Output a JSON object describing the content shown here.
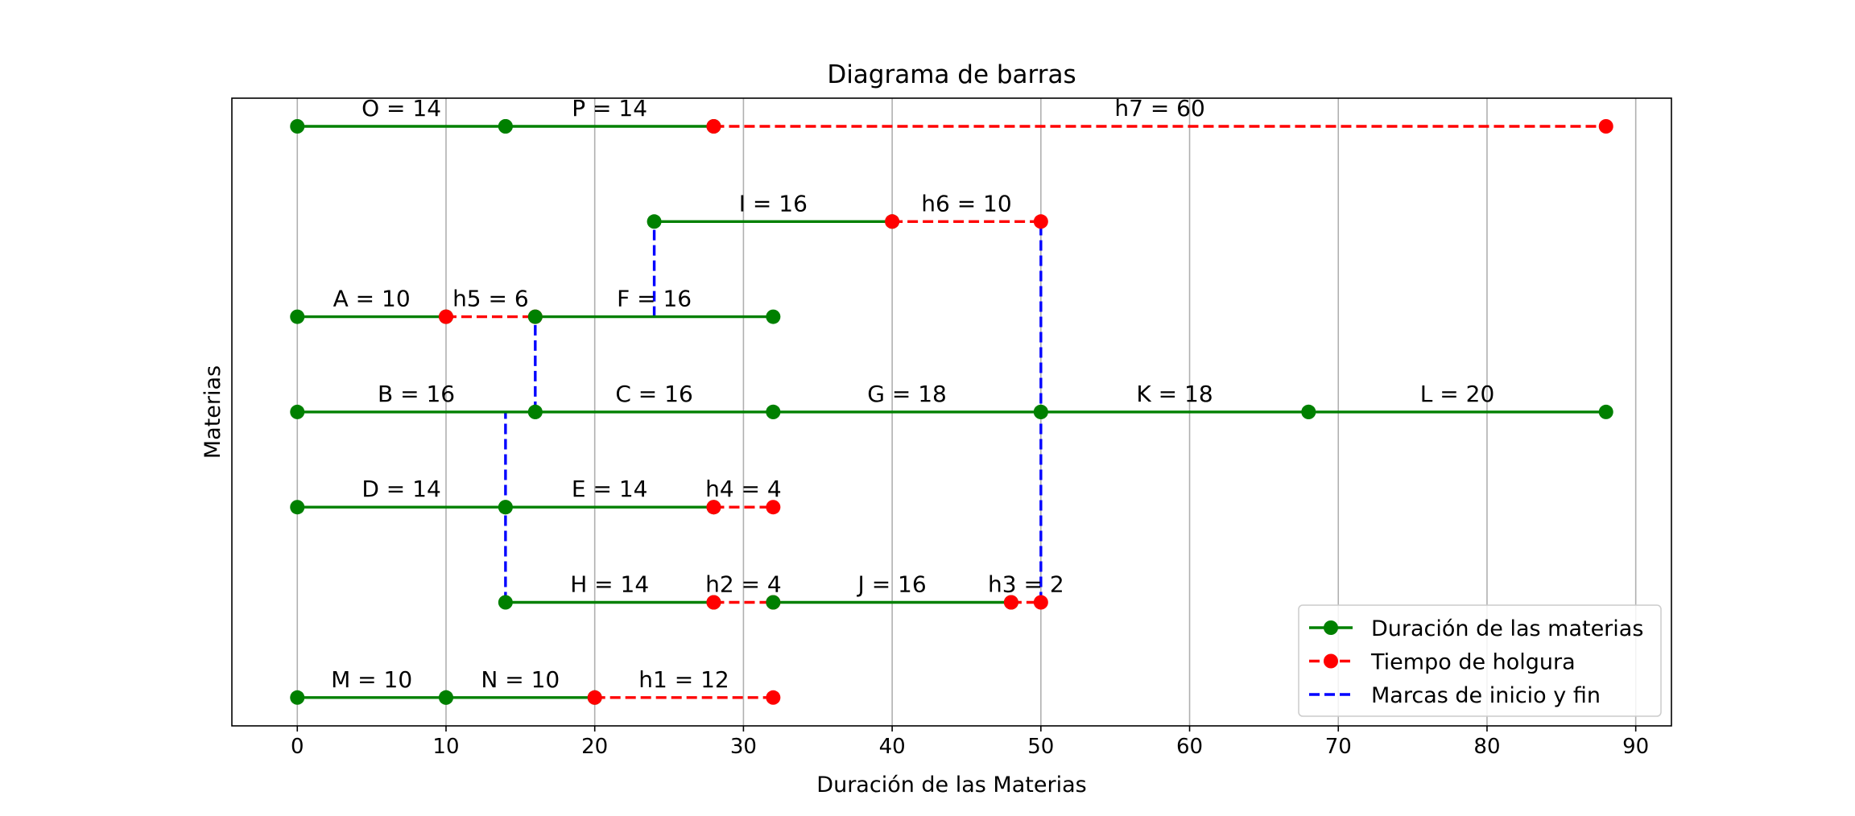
{
  "chart_data": {
    "type": "line",
    "title": "Diagrama de barras",
    "xlabel": "Duración de las Materias",
    "ylabel": "Materias",
    "xlim": [
      -4.4,
      92.4
    ],
    "xticks": [
      0,
      10,
      20,
      30,
      40,
      50,
      60,
      70,
      80,
      90
    ],
    "grid": "x",
    "legend_placement": "lower-right",
    "colors": {
      "duration": "#008000",
      "slack": "#ff0000",
      "marks": "#0000ff"
    },
    "legend": [
      {
        "label": "Duración de las materias",
        "style": "duration"
      },
      {
        "label": "Tiempo de holgura",
        "style": "slack"
      },
      {
        "label": "Marcas de inicio y fin",
        "style": "marks"
      }
    ],
    "rows": [
      {
        "y": 7,
        "segments": [
          {
            "start": 0,
            "end": 14,
            "kind": "duration",
            "label": "O = 14"
          },
          {
            "start": 14,
            "end": 28,
            "kind": "duration",
            "label": "P = 14"
          },
          {
            "start": 28,
            "end": 88,
            "kind": "slack",
            "label": "h7 = 60"
          }
        ]
      },
      {
        "y": 6,
        "segments": [
          {
            "start": 24,
            "end": 40,
            "kind": "duration",
            "label": "I = 16"
          },
          {
            "start": 40,
            "end": 50,
            "kind": "slack",
            "label": "h6 = 10"
          }
        ]
      },
      {
        "y": 5,
        "segments": [
          {
            "start": 0,
            "end": 10,
            "kind": "duration",
            "label": "A = 10"
          },
          {
            "start": 10,
            "end": 16,
            "kind": "slack",
            "label": "h5 = 6"
          },
          {
            "start": 16,
            "end": 32,
            "kind": "duration",
            "label": "F = 16"
          }
        ]
      },
      {
        "y": 4,
        "segments": [
          {
            "start": 0,
            "end": 16,
            "kind": "duration",
            "label": "B = 16"
          },
          {
            "start": 16,
            "end": 32,
            "kind": "duration",
            "label": "C = 16"
          },
          {
            "start": 32,
            "end": 50,
            "kind": "duration",
            "label": "G = 18"
          },
          {
            "start": 50,
            "end": 68,
            "kind": "duration",
            "label": "K = 18"
          },
          {
            "start": 68,
            "end": 88,
            "kind": "duration",
            "label": "L = 20"
          }
        ]
      },
      {
        "y": 3,
        "segments": [
          {
            "start": 0,
            "end": 14,
            "kind": "duration",
            "label": "D = 14"
          },
          {
            "start": 14,
            "end": 28,
            "kind": "duration",
            "label": "E = 14"
          },
          {
            "start": 28,
            "end": 32,
            "kind": "slack",
            "label": "h4 = 4"
          }
        ]
      },
      {
        "y": 2,
        "segments": [
          {
            "start": 14,
            "end": 28,
            "kind": "duration",
            "label": "H = 14"
          },
          {
            "start": 28,
            "end": 32,
            "kind": "slack",
            "label": "h2 = 4"
          },
          {
            "start": 32,
            "end": 48,
            "kind": "duration",
            "label": "J = 16"
          },
          {
            "start": 48,
            "end": 50,
            "kind": "slack",
            "label": "h3 = 2"
          }
        ]
      },
      {
        "y": 1,
        "segments": [
          {
            "start": 0,
            "end": 10,
            "kind": "duration",
            "label": "M = 10"
          },
          {
            "start": 10,
            "end": 20,
            "kind": "duration",
            "label": "N = 10"
          },
          {
            "start": 20,
            "end": 32,
            "kind": "slack",
            "label": "h1 = 12"
          }
        ]
      }
    ],
    "marks": [
      {
        "x": 24,
        "y_from": 5,
        "y_to": 6
      },
      {
        "x": 16,
        "y_from": 4,
        "y_to": 5
      },
      {
        "x": 14,
        "y_from": 2,
        "y_to": 4
      },
      {
        "x": 50,
        "y_from": 2,
        "y_to": 6
      }
    ]
  }
}
